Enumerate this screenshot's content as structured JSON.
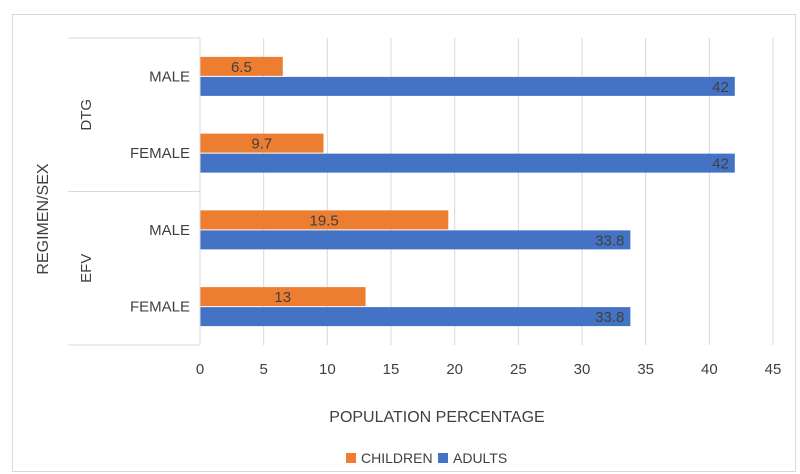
{
  "chart_data": {
    "type": "bar",
    "orientation": "horizontal",
    "title": "",
    "xlabel": "POPULATION PERCENTAGE",
    "ylabel": "REGIMEN/SEX",
    "xlim": [
      0,
      45
    ],
    "xticks": [
      0,
      5,
      10,
      15,
      20,
      25,
      30,
      35,
      40,
      45
    ],
    "grid": true,
    "legend": "bottom",
    "groups": [
      {
        "name": "DTG",
        "categories": [
          "MALE",
          "FEMALE"
        ]
      },
      {
        "name": "EFV",
        "categories": [
          "MALE",
          "FEMALE"
        ]
      }
    ],
    "categories": [
      "DTG MALE",
      "DTG FEMALE",
      "EFV MALE",
      "EFV FEMALE"
    ],
    "category_labels": [
      "MALE",
      "FEMALE",
      "MALE",
      "FEMALE"
    ],
    "series": [
      {
        "name": "CHILDREN",
        "color": "#ED7D31",
        "values": [
          6.5,
          9.7,
          19.5,
          13
        ]
      },
      {
        "name": "ADULTS",
        "color": "#4472C4",
        "values": [
          42,
          42,
          33.8,
          33.8
        ]
      }
    ],
    "data_labels": {
      "CHILDREN": [
        "6.5",
        "9.7",
        "19.5",
        "13"
      ],
      "ADULTS": [
        "42",
        "42",
        "33.8",
        "33.8"
      ]
    }
  }
}
